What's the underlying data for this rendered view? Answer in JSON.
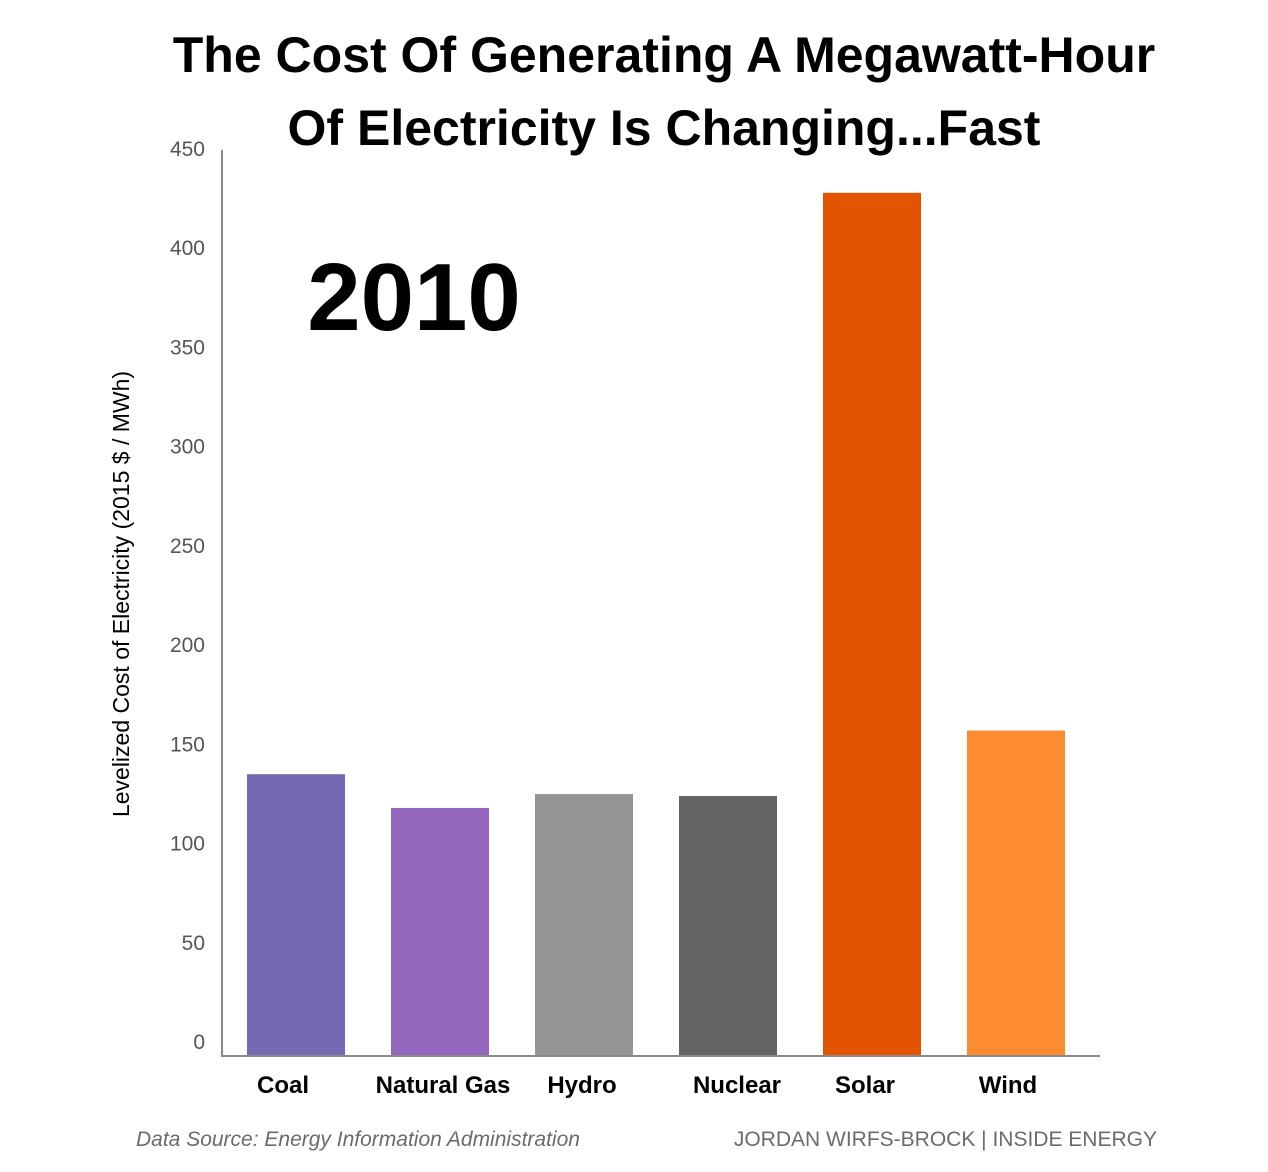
{
  "chart_data": {
    "type": "bar",
    "title_lines": [
      "The Cost Of Generating A Megawatt-Hour",
      "Of Electricity Is Changing...Fast"
    ],
    "annotation": "2010",
    "ylabel": "Levelized Cost of Electricity (2015 $ / MWh)",
    "xlabel": "",
    "ylim": [
      0,
      450
    ],
    "yticks": [
      0,
      50,
      100,
      150,
      200,
      250,
      300,
      350,
      400,
      450
    ],
    "grid": false,
    "legend": "none",
    "categories": [
      "Coal",
      "Natural Gas",
      "Hydro",
      "Nuclear",
      "Solar",
      "Wind"
    ],
    "values": [
      142,
      125,
      132,
      131,
      435,
      164
    ],
    "colors": [
      "#7569b1",
      "#9466be",
      "#959595",
      "#646464",
      "#e35400",
      "#fd8b30"
    ],
    "source": "Data Source: Energy Information Administration",
    "credit": "JORDAN WIRFS-BROCK | INSIDE ENERGY"
  }
}
